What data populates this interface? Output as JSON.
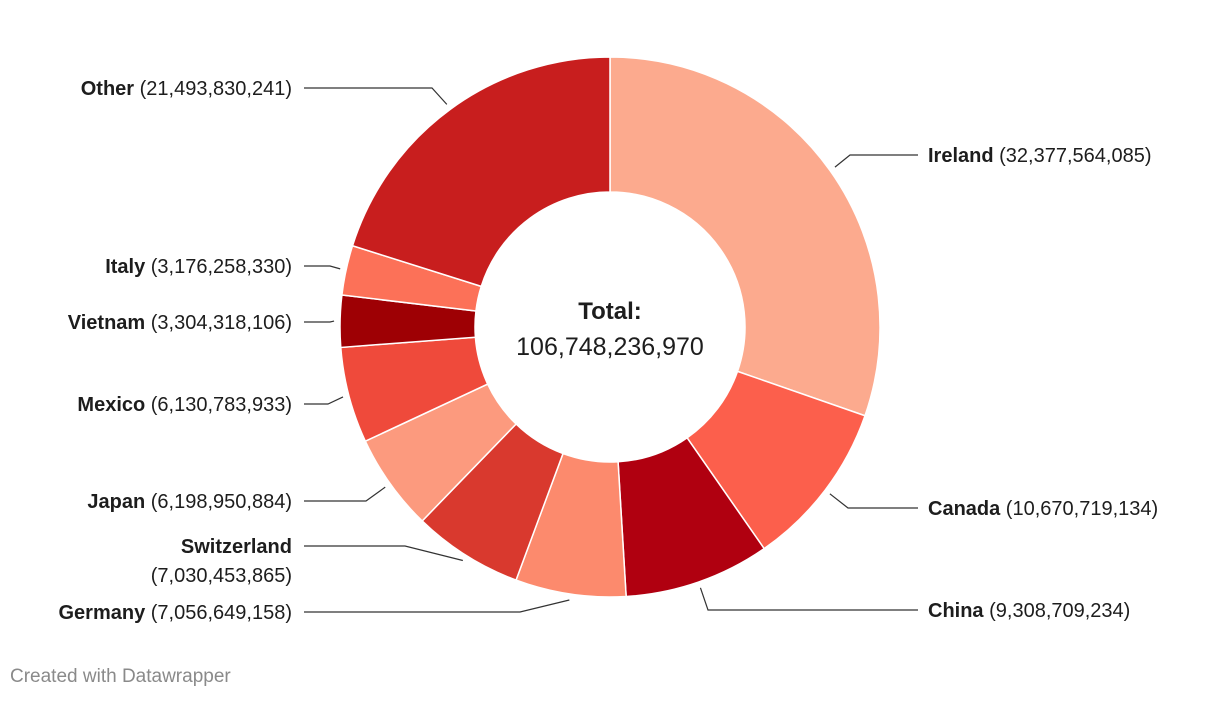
{
  "chart_data": {
    "type": "pie",
    "variant": "donut",
    "center_title": "Total:",
    "center_value": "106,748,236,970",
    "slices": [
      {
        "label": "Ireland",
        "value": 32377564085,
        "display": "(32,377,564,085)",
        "color": "#fcaa8e"
      },
      {
        "label": "Canada",
        "value": 10670719134,
        "display": "(10,670,719,134)",
        "color": "#fc5f4c"
      },
      {
        "label": "China",
        "value": 9308709234,
        "display": "(9,308,709,234)",
        "color": "#b00010"
      },
      {
        "label": "Germany",
        "value": 7056649158,
        "display": "(7,056,649,158)",
        "color": "#fc8a6d"
      },
      {
        "label": "Switzerland",
        "value": 7030453865,
        "display": "(7,030,453,865)",
        "color": "#d9392e"
      },
      {
        "label": "Japan",
        "value": 6198950884,
        "display": "(6,198,950,884)",
        "color": "#fc9a7e"
      },
      {
        "label": "Mexico",
        "value": 6130783933,
        "display": "(6,130,783,933)",
        "color": "#ef4a3b"
      },
      {
        "label": "Vietnam",
        "value": 3304318106,
        "display": "(3,304,318,106)",
        "color": "#9e0004"
      },
      {
        "label": "Italy",
        "value": 3176258330,
        "display": "(3,176,258,330)",
        "color": "#fc7158"
      },
      {
        "label": "Other",
        "value": 21493830241,
        "display": "(21,493,830,241)",
        "color": "#c81e1e"
      }
    ]
  },
  "footer": "Created with Datawrapper"
}
